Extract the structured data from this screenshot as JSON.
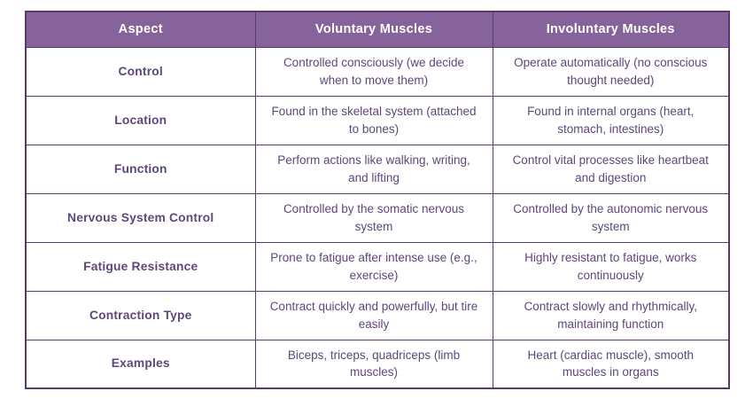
{
  "table": {
    "columns": [
      "Aspect",
      "Voluntary Muscles",
      "Involuntary Muscles"
    ],
    "rows": [
      {
        "aspect": "Control",
        "voluntary": "Controlled consciously (we decide when to move them)",
        "involuntary": "Operate automatically (no conscious thought needed)"
      },
      {
        "aspect": "Location",
        "voluntary": "Found in the skeletal system (attached to bones)",
        "involuntary": "Found in internal organs (heart, stomach, intestines)"
      },
      {
        "aspect": "Function",
        "voluntary": "Perform actions like walking, writing, and lifting",
        "involuntary": "Control vital processes like heartbeat and digestion"
      },
      {
        "aspect": "Nervous System Control",
        "voluntary": "Controlled by the somatic nervous system",
        "involuntary": "Controlled by the autonomic nervous system"
      },
      {
        "aspect": "Fatigue Resistance",
        "voluntary": "Prone to fatigue after intense use (e.g., exercise)",
        "involuntary": "Highly resistant to fatigue, works continuously"
      },
      {
        "aspect": "Contraction Type",
        "voluntary": "Contract quickly and powerfully, but tire easily",
        "involuntary": "Contract slowly and rhythmically, maintaining function"
      },
      {
        "aspect": "Examples",
        "voluntary": "Biceps, triceps, quadriceps (limb muscles)",
        "involuntary": "Heart (cardiac muscle), smooth muscles in organs"
      }
    ],
    "colors": {
      "header_bg": "#86649B",
      "header_text": "#FFFFFF",
      "body_text": "#5E477A",
      "border": "#5A3A68",
      "cell_bg": "#FFFFFF",
      "page_bg": "#FFFFFF"
    }
  }
}
